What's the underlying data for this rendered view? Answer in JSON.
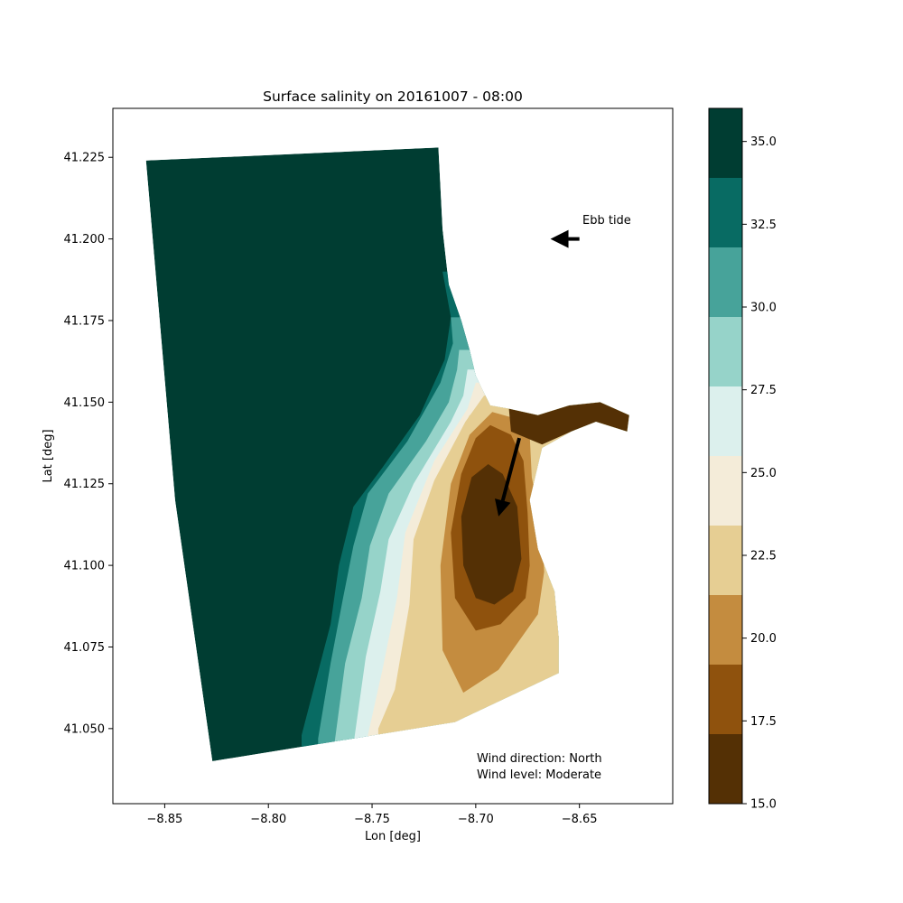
{
  "chart_data": {
    "type": "heatmap",
    "title": "Surface salinity on 20161007 - 08:00",
    "xlabel": "Lon [deg]",
    "ylabel": "Lat [deg]",
    "xlim": [
      -8.875,
      -8.605
    ],
    "ylim": [
      41.027,
      41.24
    ],
    "x_ticks": [
      -8.85,
      -8.8,
      -8.75,
      -8.7,
      -8.65
    ],
    "x_tick_labels": [
      "−8.85",
      "−8.80",
      "−8.75",
      "−8.70",
      "−8.65"
    ],
    "y_ticks": [
      41.05,
      41.075,
      41.1,
      41.125,
      41.15,
      41.175,
      41.2,
      41.225
    ],
    "y_tick_labels": [
      "41.050",
      "41.075",
      "41.100",
      "41.125",
      "41.150",
      "41.175",
      "41.200",
      "41.225"
    ],
    "grid": false,
    "colorbar": {
      "min": 15.0,
      "max": 36.0,
      "levels": [
        15.0,
        17.1,
        19.2,
        21.3,
        23.4,
        25.5,
        27.6,
        29.7,
        31.8,
        33.9,
        36.0
      ],
      "colors": [
        "#543005",
        "#8f520d",
        "#c48c3f",
        "#e6ce93",
        "#f4ecd9",
        "#dcf0ed",
        "#96d3c9",
        "#47a39a",
        "#086b63",
        "#003d32"
      ],
      "tick_values": [
        15.0,
        17.5,
        20.0,
        22.5,
        25.0,
        27.5,
        30.0,
        32.5,
        35.0
      ],
      "tick_labels": [
        "15.0",
        "17.5",
        "20.0",
        "22.5",
        "25.0",
        "27.5",
        "30.0",
        "32.5",
        "35.0"
      ]
    },
    "domain_outline": [
      [
        -8.859,
        41.224
      ],
      [
        -8.718,
        41.228
      ],
      [
        -8.716,
        41.203
      ],
      [
        -8.713,
        41.186
      ],
      [
        -8.707,
        41.175
      ],
      [
        -8.703,
        41.166
      ],
      [
        -8.7,
        41.158
      ],
      [
        -8.693,
        41.149
      ],
      [
        -8.684,
        41.148
      ],
      [
        -8.67,
        41.146
      ],
      [
        -8.655,
        41.149
      ],
      [
        -8.64,
        41.15
      ],
      [
        -8.626,
        41.146
      ],
      [
        -8.627,
        41.141
      ],
      [
        -8.642,
        41.144
      ],
      [
        -8.654,
        41.141
      ],
      [
        -8.668,
        41.136
      ],
      [
        -8.674,
        41.12
      ],
      [
        -8.67,
        41.105
      ],
      [
        -8.662,
        41.092
      ],
      [
        -8.66,
        41.078
      ],
      [
        -8.66,
        41.067
      ],
      [
        -8.71,
        41.052
      ],
      [
        -8.827,
        41.04
      ],
      [
        -8.845,
        41.12
      ]
    ],
    "contour_fronts": [
      {
        "value": 33.9,
        "points": [
          [
            -8.716,
            41.19
          ],
          [
            -8.712,
            41.176
          ],
          [
            -8.715,
            41.163
          ],
          [
            -8.727,
            41.146
          ],
          [
            -8.745,
            41.13
          ],
          [
            -8.759,
            41.118
          ],
          [
            -8.766,
            41.1
          ],
          [
            -8.77,
            41.082
          ],
          [
            -8.777,
            41.065
          ],
          [
            -8.784,
            41.048
          ]
        ]
      },
      {
        "value": 31.8,
        "points": [
          [
            -8.712,
            41.176
          ],
          [
            -8.711,
            41.168
          ],
          [
            -8.717,
            41.156
          ],
          [
            -8.733,
            41.138
          ],
          [
            -8.752,
            41.122
          ],
          [
            -8.759,
            41.106
          ],
          [
            -8.764,
            41.09
          ],
          [
            -8.77,
            41.07
          ],
          [
            -8.776,
            41.047
          ]
        ]
      },
      {
        "value": 29.7,
        "points": [
          [
            -8.708,
            41.166
          ],
          [
            -8.709,
            41.16
          ],
          [
            -8.713,
            41.15
          ],
          [
            -8.724,
            41.138
          ],
          [
            -8.742,
            41.122
          ],
          [
            -8.751,
            41.106
          ],
          [
            -8.755,
            41.09
          ],
          [
            -8.763,
            41.07
          ],
          [
            -8.768,
            41.046
          ]
        ]
      },
      {
        "value": 27.6,
        "points": [
          [
            -8.704,
            41.16
          ],
          [
            -8.706,
            41.152
          ],
          [
            -8.712,
            41.144
          ],
          [
            -8.73,
            41.125
          ],
          [
            -8.742,
            41.108
          ],
          [
            -8.746,
            41.092
          ],
          [
            -8.753,
            41.072
          ],
          [
            -8.759,
            41.045
          ]
        ]
      },
      {
        "value": 25.5,
        "points": [
          [
            -8.7,
            41.156
          ],
          [
            -8.704,
            41.148
          ],
          [
            -8.72,
            41.132
          ],
          [
            -8.734,
            41.11
          ],
          [
            -8.738,
            41.09
          ],
          [
            -8.745,
            41.068
          ],
          [
            -8.752,
            41.048
          ]
        ]
      },
      {
        "value": 23.4,
        "points": [
          [
            -8.696,
            41.152
          ],
          [
            -8.705,
            41.144
          ],
          [
            -8.72,
            41.126
          ],
          [
            -8.73,
            41.108
          ],
          [
            -8.732,
            41.088
          ],
          [
            -8.739,
            41.062
          ],
          [
            -8.747,
            41.05
          ]
        ]
      }
    ],
    "wind_arrow": {
      "from": [
        -8.679,
        41.139
      ],
      "to": [
        -8.689,
        41.115
      ]
    },
    "tide_arrow": {
      "from": [
        -8.65,
        41.2
      ],
      "to": [
        -8.664,
        41.2
      ]
    },
    "annotations": {
      "tide": "Ebb tide",
      "wind_direction": "Wind direction: North",
      "wind_level": "Wind level: Moderate"
    }
  }
}
